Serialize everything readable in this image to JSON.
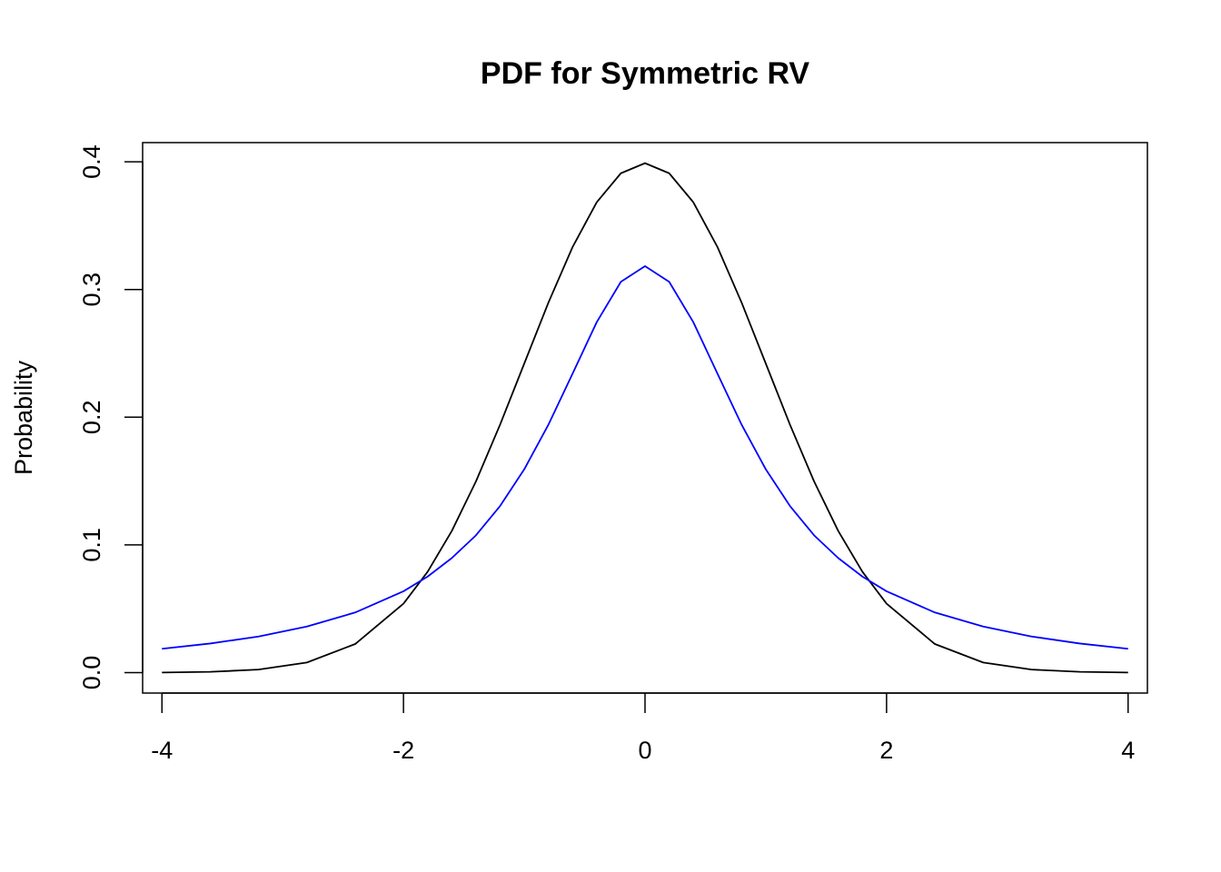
{
  "chart_data": {
    "type": "line",
    "title": "PDF for Symmetric RV",
    "xlabel": "",
    "ylabel": "Probability",
    "xlim": [
      -4.16,
      4.16
    ],
    "ylim": [
      -0.016,
      0.415
    ],
    "xticks": [
      -4,
      -2,
      0,
      2,
      4
    ],
    "xtick_labels": [
      "-4",
      "-2",
      "0",
      "2",
      "4"
    ],
    "yticks": [
      0.0,
      0.1,
      0.2,
      0.3,
      0.4
    ],
    "ytick_labels": [
      "0.0",
      "0.1",
      "0.2",
      "0.3",
      "0.4"
    ],
    "grid": false,
    "legend": "none",
    "series": [
      {
        "color": "#000000",
        "x": [
          -4.0,
          -3.6,
          -3.2,
          -2.8,
          -2.4,
          -2.0,
          -1.8,
          -1.6,
          -1.4,
          -1.2,
          -1.0,
          -0.8,
          -0.6,
          -0.4,
          -0.2,
          0.0,
          0.2,
          0.4,
          0.6,
          0.8,
          1.0,
          1.2,
          1.4,
          1.6,
          1.8,
          2.0,
          2.4,
          2.8,
          3.2,
          3.6,
          4.0
        ],
        "y": [
          0.0001,
          0.0006,
          0.0024,
          0.0079,
          0.0224,
          0.054,
          0.079,
          0.1109,
          0.1497,
          0.1942,
          0.242,
          0.2897,
          0.3332,
          0.3683,
          0.391,
          0.3989,
          0.391,
          0.3683,
          0.3332,
          0.2897,
          0.242,
          0.1942,
          0.1497,
          0.1109,
          0.079,
          0.054,
          0.0224,
          0.0079,
          0.0024,
          0.0006,
          0.0001
        ]
      },
      {
        "color": "#0000ff",
        "x": [
          -4.0,
          -3.6,
          -3.2,
          -2.8,
          -2.4,
          -2.0,
          -1.8,
          -1.6,
          -1.4,
          -1.2,
          -1.0,
          -0.8,
          -0.6,
          -0.4,
          -0.2,
          0.0,
          0.2,
          0.4,
          0.6,
          0.8,
          1.0,
          1.2,
          1.4,
          1.6,
          1.8,
          2.0,
          2.4,
          2.8,
          3.2,
          3.6,
          4.0
        ],
        "y": [
          0.0187,
          0.0228,
          0.0283,
          0.0361,
          0.0471,
          0.0637,
          0.0752,
          0.0897,
          0.1075,
          0.1305,
          0.1592,
          0.1941,
          0.2341,
          0.2744,
          0.306,
          0.3183,
          0.306,
          0.2744,
          0.2341,
          0.1941,
          0.1592,
          0.1305,
          0.1075,
          0.0897,
          0.0752,
          0.0637,
          0.0471,
          0.0361,
          0.0283,
          0.0228,
          0.0187
        ]
      }
    ]
  }
}
